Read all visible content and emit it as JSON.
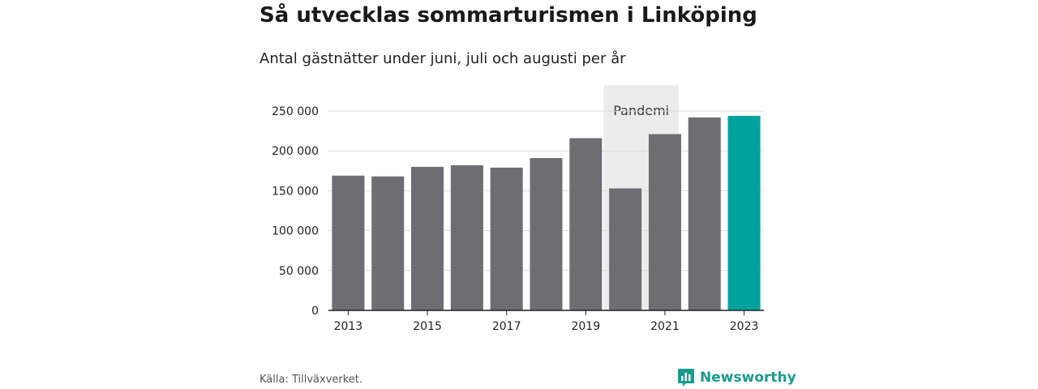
{
  "title": "Så utvecklas sommarturismen i Linköping",
  "subtitle": "Antal gästnätter under juni, juli och augusti per år",
  "source": "Källa: Tillväxverket.",
  "brand": {
    "name": "Newsworthy",
    "icon": "chart-bubble-icon",
    "color": "#1c9a8e"
  },
  "colors": {
    "bar": "#6e6d72",
    "highlight": "#00a39b",
    "band": "#ececec",
    "grid": "#d9d9d9",
    "axis": "#222222"
  },
  "chart_data": {
    "type": "bar",
    "categories": [
      "2013",
      "2014",
      "2015",
      "2016",
      "2017",
      "2018",
      "2019",
      "2020",
      "2021",
      "2022",
      "2023"
    ],
    "values": [
      169000,
      168000,
      180000,
      182000,
      179000,
      191000,
      216000,
      153000,
      221000,
      242000,
      244000
    ],
    "highlight_category": "2023",
    "x_tick_labels": [
      "2013",
      "2015",
      "2017",
      "2019",
      "2021",
      "2023"
    ],
    "y_ticks": [
      0,
      50000,
      100000,
      150000,
      200000,
      250000
    ],
    "y_tick_labels": [
      "0",
      "50 000",
      "100 000",
      "150 000",
      "200 000",
      "250 000"
    ],
    "ylim": [
      0,
      280000
    ],
    "annotation": {
      "label": "Pandemi",
      "category": "2020"
    },
    "grid": true,
    "xlabel": "",
    "ylabel": ""
  }
}
